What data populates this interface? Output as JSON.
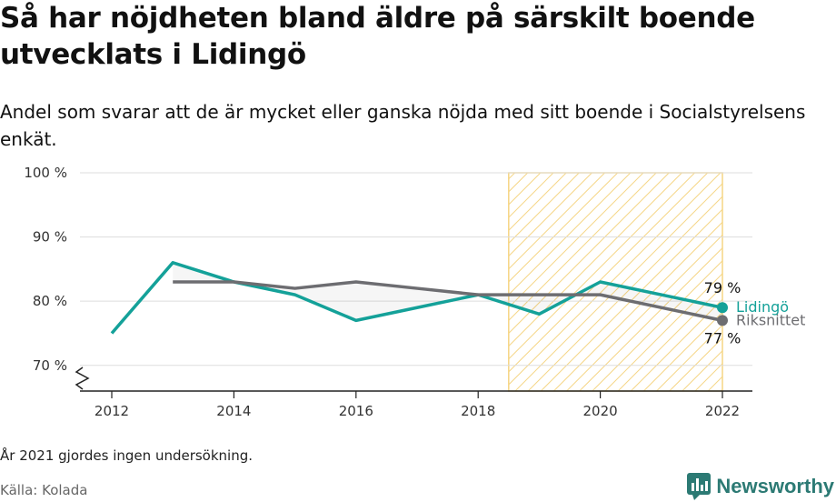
{
  "title": "Så har nöjdheten bland äldre på särskilt boende utvecklats i Lidingö",
  "subtitle": "Andel som svarar att de är mycket eller ganska nöjda med sitt boende i Socialstyrelsens enkät.",
  "note": "År 2021 gjordes ingen undersökning.",
  "source": "Källa: Kolada",
  "brand": {
    "name": "Newsworthy",
    "icon": "newsworthy-logo-icon"
  },
  "colors": {
    "lidingo": "#14a199",
    "riks": "#6d6d71",
    "highlight": "#f5d584",
    "grid": "#dddddd",
    "axis": "#222222"
  },
  "chart_data": {
    "type": "line",
    "x": [
      2012,
      2013,
      2014,
      2015,
      2016,
      2017,
      2018,
      2019,
      2020,
      2022
    ],
    "xticks": [
      {
        "value": 2012,
        "label": "2012"
      },
      {
        "value": 2014,
        "label": "2014"
      },
      {
        "value": 2016,
        "label": "2016"
      },
      {
        "value": 2018,
        "label": "2018"
      },
      {
        "value": 2020,
        "label": "2020"
      },
      {
        "value": 2022,
        "label": "2022"
      }
    ],
    "yticks": [
      {
        "value": 70,
        "label": "70 %"
      },
      {
        "value": 80,
        "label": "80 %"
      },
      {
        "value": 90,
        "label": "90 %"
      },
      {
        "value": 100,
        "label": "100 %"
      }
    ],
    "xlim": [
      2011.5,
      2022.5
    ],
    "ylim": [
      66,
      100
    ],
    "axis_break": true,
    "grid": true,
    "highlight_range": [
      2018.5,
      2022
    ],
    "series": [
      {
        "name": "Lidingö",
        "color": "#14a199",
        "values": [
          75,
          86,
          83,
          81,
          77,
          79,
          81,
          78,
          83,
          79
        ],
        "end_label": "79 %"
      },
      {
        "name": "Riksnittet",
        "color": "#6d6d71",
        "values": [
          null,
          83,
          83,
          82,
          83,
          82,
          81,
          81,
          81,
          77
        ],
        "end_label": "77 %"
      }
    ]
  }
}
